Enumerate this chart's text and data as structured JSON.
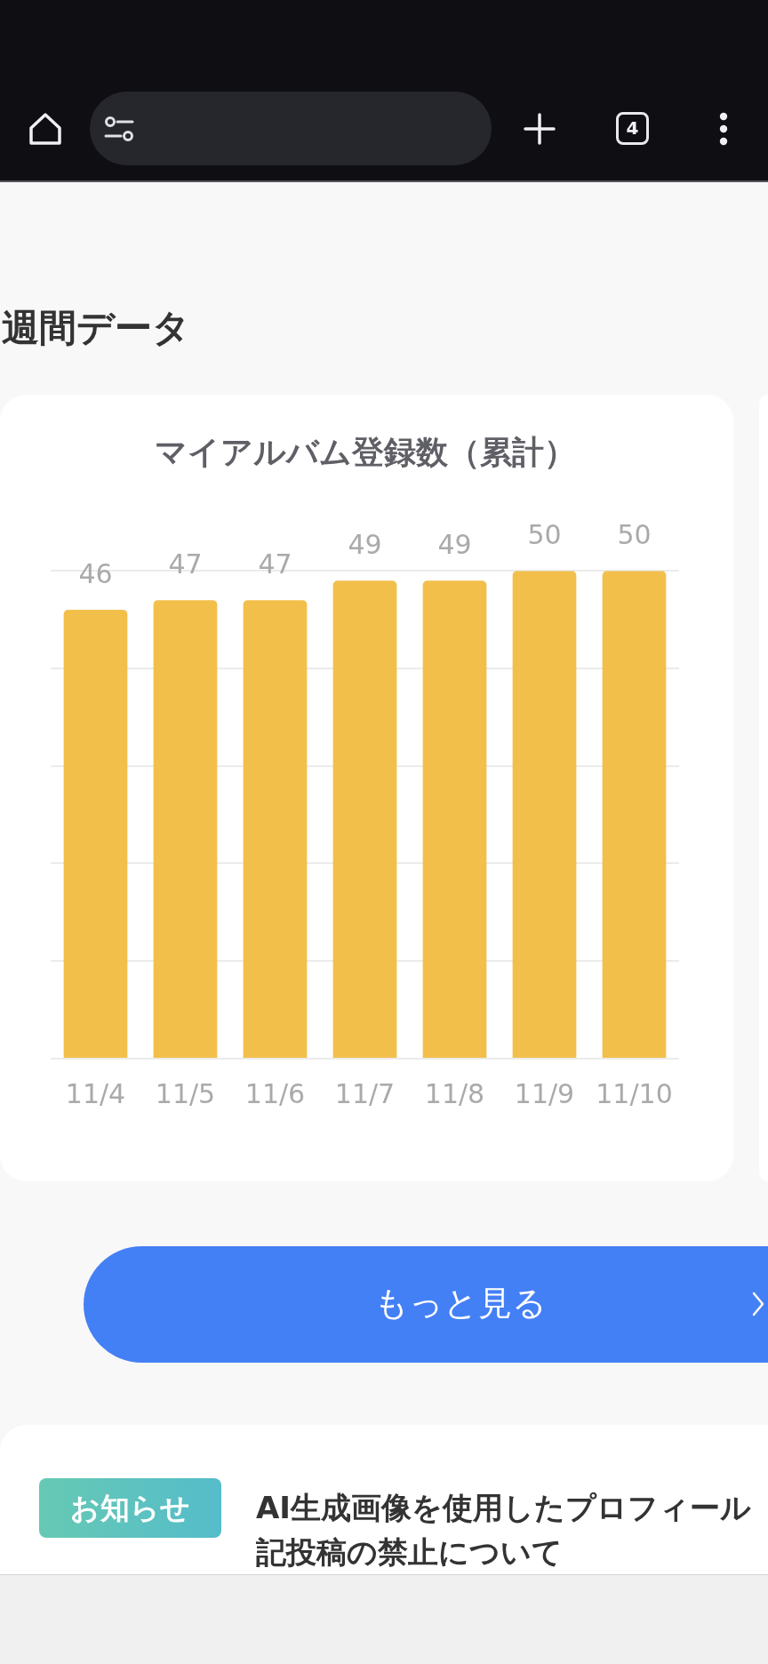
{
  "chart_data": {
    "type": "bar",
    "title": "マイアルバム登録数（累計）",
    "categories": [
      "11/4",
      "11/5",
      "11/6",
      "11/7",
      "11/8",
      "11/9",
      "11/10"
    ],
    "values": [
      46,
      47,
      47,
      49,
      49,
      50,
      50
    ],
    "color": "#f3bf4b",
    "ylim": [
      0,
      50
    ],
    "yticks": [
      {
        "value": 0,
        "label": null
      },
      {
        "value": 10,
        "label": null
      },
      {
        "value": 20,
        "label": null
      },
      {
        "value": 30,
        "label": null
      },
      {
        "value": 40,
        "label": null
      },
      {
        "value": 50,
        "label": null
      }
    ],
    "grid": "y",
    "tick_labels": "x",
    "data_labels": true,
    "annotations": [
      "4",
      "週間データ",
      "もっと見る",
      "お知らせ",
      "AI生成画像を使用したプロフィール",
      "記投稿の禁止について"
    ]
  }
}
